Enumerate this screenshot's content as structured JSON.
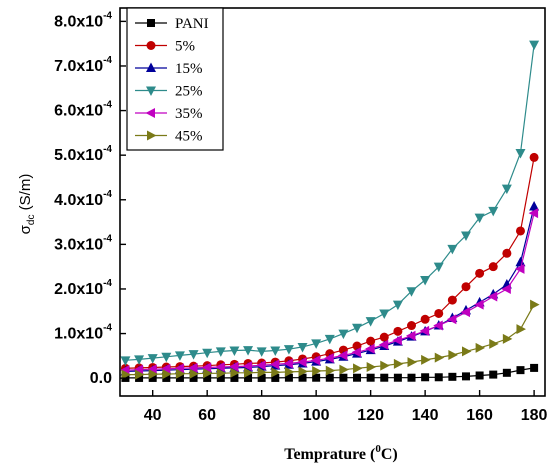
{
  "chart_data": {
    "type": "line",
    "xlabel": "Temprature (",
    "xlabel_sup": "0",
    "xlabel_unit": "C)",
    "ylabel_main": "σ",
    "ylabel_sub": "dc",
    "ylabel_unit": " (S/m)",
    "xlim": [
      28,
      184
    ],
    "ylim": [
      -4e-05,
      0.00083
    ],
    "x_ticks": [
      40,
      60,
      80,
      100,
      120,
      140,
      160,
      180
    ],
    "x_tick_labels": [
      "40",
      "60",
      "80",
      "100",
      "120",
      "140",
      "160",
      "180"
    ],
    "y_ticks": [
      0,
      0.0001,
      0.0002,
      0.0003,
      0.0004,
      0.0005,
      0.0006,
      0.0007,
      0.0008
    ],
    "y_tick_labels": [
      {
        "mant": "0.0",
        "exp": ""
      },
      {
        "mant": "1.0x10",
        "exp": "-4"
      },
      {
        "mant": "2.0x10",
        "exp": "-4"
      },
      {
        "mant": "3.0x10",
        "exp": "-4"
      },
      {
        "mant": "4.0x10",
        "exp": "-4"
      },
      {
        "mant": "5.0x10",
        "exp": "-4"
      },
      {
        "mant": "6.0x10",
        "exp": "-4"
      },
      {
        "mant": "7.0x10",
        "exp": "-4"
      },
      {
        "mant": "8.0x10",
        "exp": "-4"
      }
    ],
    "legend_position": "top-left",
    "x": [
      30,
      35,
      40,
      45,
      50,
      55,
      60,
      65,
      70,
      75,
      80,
      85,
      90,
      95,
      100,
      105,
      110,
      115,
      120,
      125,
      130,
      135,
      140,
      145,
      150,
      155,
      160,
      165,
      170,
      175,
      180
    ],
    "series": [
      {
        "name": "PANI",
        "color": "#000000",
        "marker": "square",
        "values": [
          5e-07,
          5e-07,
          5e-07,
          5e-07,
          5e-07,
          5e-07,
          5e-07,
          5e-07,
          5e-07,
          5e-07,
          5e-07,
          5e-07,
          1e-06,
          1e-06,
          1e-06,
          1e-06,
          1e-06,
          1e-06,
          1e-06,
          1e-06,
          1e-06,
          1e-06,
          2e-06,
          2e-06,
          3e-06,
          4e-06,
          6e-06,
          8e-06,
          1.2e-05,
          1.8e-05,
          2.3e-05
        ]
      },
      {
        "name": "5%",
        "color": "#c00000",
        "marker": "circle",
        "values": [
          2.2e-05,
          2.3e-05,
          2.4e-05,
          2.5e-05,
          2.6e-05,
          2.7e-05,
          2.8e-05,
          3e-05,
          3.1e-05,
          3.3e-05,
          3.4e-05,
          3.6e-05,
          3.9e-05,
          4.3e-05,
          4.8e-05,
          5.5e-05,
          6.3e-05,
          7.2e-05,
          8.3e-05,
          9.2e-05,
          0.000105,
          0.000118,
          0.000132,
          0.000145,
          0.000175,
          0.000205,
          0.000235,
          0.00025,
          0.00028,
          0.00033,
          0.000495
        ]
      },
      {
        "name": "15%",
        "color": "#00009a",
        "marker": "triangle-up",
        "values": [
          1.5e-05,
          1.6e-05,
          1.7e-05,
          1.8e-05,
          1.9e-05,
          2e-05,
          2.1e-05,
          2.2e-05,
          2.3e-05,
          2.4e-05,
          2.6e-05,
          2.8e-05,
          3e-05,
          3.3e-05,
          3.7e-05,
          4.2e-05,
          4.8e-05,
          5.5e-05,
          6.3e-05,
          7.2e-05,
          8.2e-05,
          9.3e-05,
          0.000105,
          0.000118,
          0.000135,
          0.000152,
          0.00017,
          0.000188,
          0.00021,
          0.00026,
          0.000385
        ]
      },
      {
        "name": "25%",
        "color": "#2e8b8b",
        "marker": "triangle-down",
        "values": [
          4e-05,
          4.2e-05,
          4.5e-05,
          4.8e-05,
          5.1e-05,
          5.4e-05,
          5.7e-05,
          6e-05,
          6.2e-05,
          6.3e-05,
          6e-05,
          6.2e-05,
          6.5e-05,
          7e-05,
          7.8e-05,
          8.8e-05,
          0.0001,
          0.000113,
          0.000128,
          0.000145,
          0.000165,
          0.000195,
          0.00022,
          0.00025,
          0.00029,
          0.00032,
          0.00036,
          0.000375,
          0.000425,
          0.000505,
          0.000748
        ]
      },
      {
        "name": "35%",
        "color": "#c000c0",
        "marker": "triangle-left",
        "values": [
          1.8e-05,
          1.9e-05,
          2e-05,
          2.1e-05,
          2.2e-05,
          2.3e-05,
          2.4e-05,
          2.5e-05,
          2.6e-05,
          2.7e-05,
          2.9e-05,
          3.1e-05,
          3.3e-05,
          3.6e-05,
          4e-05,
          4.5e-05,
          5.1e-05,
          5.8e-05,
          6.6e-05,
          7.5e-05,
          8.5e-05,
          9.5e-05,
          0.000106,
          0.000118,
          0.000132,
          0.000148,
          0.000165,
          0.000183,
          0.0002,
          0.000245,
          0.00037
        ]
      },
      {
        "name": "45%",
        "color": "#7a7a18",
        "marker": "triangle-right",
        "values": [
          8e-06,
          8e-06,
          9e-06,
          9e-06,
          1e-05,
          1e-05,
          1.1e-05,
          1.1e-05,
          1.2e-05,
          1.2e-05,
          1.3e-05,
          1.3e-05,
          1.4e-05,
          1.5e-05,
          1.6e-05,
          1.7e-05,
          1.9e-05,
          2.2e-05,
          2.5e-05,
          2.8e-05,
          3.2e-05,
          3.6e-05,
          4.1e-05,
          4.6e-05,
          5.2e-05,
          6e-05,
          6.8e-05,
          7.7e-05,
          8.8e-05,
          0.00011,
          0.000165
        ]
      }
    ]
  }
}
